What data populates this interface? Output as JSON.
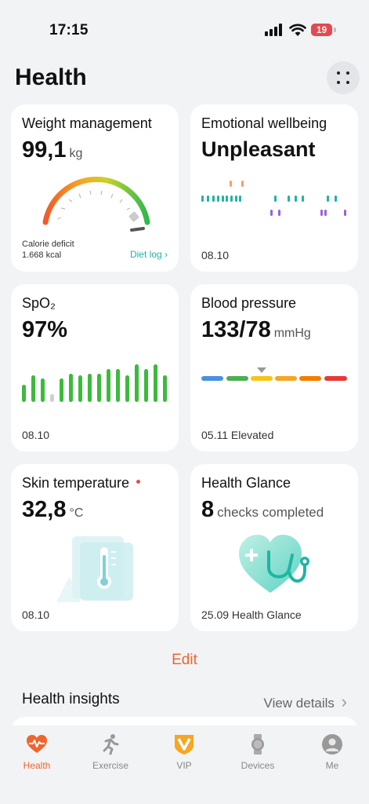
{
  "status_bar": {
    "time": "17:15",
    "battery": "19"
  },
  "header": {
    "title": "Health"
  },
  "cards": {
    "weight": {
      "title": "Weight management",
      "value": "99,1",
      "unit": "kg",
      "calorie_label": "Calorie deficit",
      "calorie_value": "1.668 kcal",
      "diet_log": "Diet log"
    },
    "emotional": {
      "title": "Emotional wellbeing",
      "value": "Unpleasant",
      "date": "08.10"
    },
    "spo2": {
      "title": "SpO₂",
      "value": "97%",
      "date": "08.10"
    },
    "blood_pressure": {
      "title": "Blood pressure",
      "value": "133/78",
      "unit": "mmHg",
      "footer": "05.11 Elevated",
      "colors": [
        "#4a90e2",
        "#4caf50",
        "#f5c518",
        "#f5a623",
        "#f57c00",
        "#e53935"
      ]
    },
    "skin_temp": {
      "title": "Skin temperature",
      "value": "32,8",
      "unit": "°C",
      "date": "08.10"
    },
    "health_glance": {
      "title": "Health Glance",
      "value": "8",
      "unit": "checks completed",
      "footer": "25.09 Health Glance"
    }
  },
  "edit_label": "Edit",
  "insights": {
    "title": "Health insights",
    "link": "View details"
  },
  "tabs": [
    {
      "label": "Health",
      "icon": "heart-pulse-icon"
    },
    {
      "label": "Exercise",
      "icon": "running-icon"
    },
    {
      "label": "VIP",
      "icon": "vip-badge-icon"
    },
    {
      "label": "Devices",
      "icon": "watch-icon"
    },
    {
      "label": "Me",
      "icon": "user-icon"
    }
  ],
  "colors": {
    "accent": "#f0642d",
    "teal": "#1fb5a3",
    "green": "#3cba3c"
  }
}
